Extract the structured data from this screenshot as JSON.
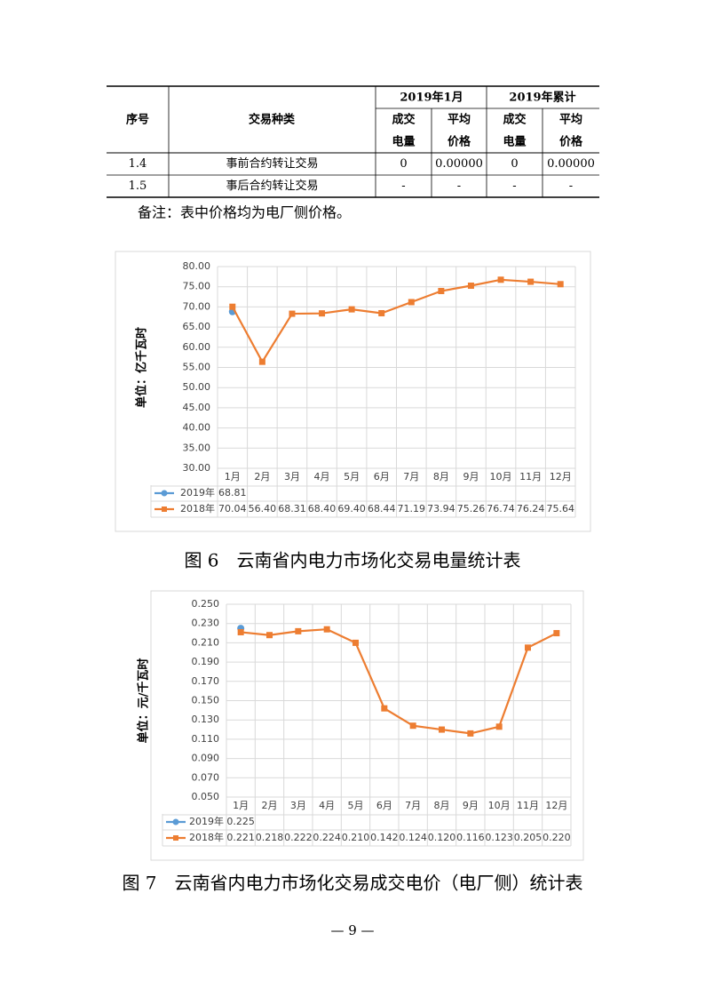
{
  "table": {
    "group_headers": [
      "序号",
      "交易种类",
      "2019年1月",
      "2019年累计"
    ],
    "subheaders": [
      [
        "成交",
        "电量"
      ],
      [
        "平均",
        "价格"
      ],
      [
        "成交",
        "电量"
      ],
      [
        "平均",
        "价格"
      ]
    ],
    "rows": [
      [
        "1.4",
        "事前合约转让交易",
        "0",
        "0.00000",
        "0",
        "0.00000"
      ],
      [
        "1.5",
        "事后合约转让交易",
        "-",
        "-",
        "-",
        "-"
      ]
    ]
  },
  "note": "备注：表中价格均为电厂侧价格。",
  "chart_data": [
    {
      "type": "line",
      "y_label": "单位：亿千瓦时",
      "caption": "图 6　云南省内电力市场化交易电量统计表",
      "categories": [
        "1月",
        "2月",
        "3月",
        "4月",
        "5月",
        "6月",
        "7月",
        "8月",
        "9月",
        "10月",
        "11月",
        "12月"
      ],
      "ylim": [
        30,
        80
      ],
      "yticks": [
        {
          "value": 30,
          "label": "30.00"
        },
        {
          "value": 35,
          "label": "35.00"
        },
        {
          "value": 40,
          "label": "40.00"
        },
        {
          "value": 45,
          "label": "45.00"
        },
        {
          "value": 50,
          "label": "50.00"
        },
        {
          "value": 55,
          "label": "55.00"
        },
        {
          "value": 60,
          "label": "60.00"
        },
        {
          "value": 65,
          "label": "65.00"
        },
        {
          "value": 70,
          "label": "70.00"
        },
        {
          "value": 75,
          "label": "75.00"
        },
        {
          "value": 80,
          "label": "80.00"
        }
      ],
      "series": [
        {
          "name": "2019年",
          "color": "#5b9bd5",
          "marker": "circle",
          "values": [
            68.81,
            null,
            null,
            null,
            null,
            null,
            null,
            null,
            null,
            null,
            null,
            null
          ],
          "value_labels": [
            "68.81",
            null,
            null,
            null,
            null,
            null,
            null,
            null,
            null,
            null,
            null,
            null
          ]
        },
        {
          "name": "2018年",
          "color": "#ed7d31",
          "marker": "square",
          "values": [
            70.04,
            56.4,
            68.31,
            68.4,
            69.4,
            68.44,
            71.19,
            73.94,
            75.26,
            76.74,
            76.24,
            75.64
          ],
          "value_labels": [
            "70.04",
            "56.40",
            "68.31",
            "68.40",
            "69.40",
            "68.44",
            "71.19",
            "73.94",
            "75.26",
            "76.74",
            "76.24",
            "75.64"
          ]
        }
      ]
    },
    {
      "type": "line",
      "y_label": "单位：元/千瓦时",
      "caption": "图 7　云南省内电力市场化交易成交电价（电厂侧）统计表",
      "categories": [
        "1月",
        "2月",
        "3月",
        "4月",
        "5月",
        "6月",
        "7月",
        "8月",
        "9月",
        "10月",
        "11月",
        "12月"
      ],
      "ylim": [
        0.05,
        0.25
      ],
      "yticks": [
        {
          "value": 0.05,
          "label": "0.050"
        },
        {
          "value": 0.07,
          "label": "0.070"
        },
        {
          "value": 0.09,
          "label": "0.090"
        },
        {
          "value": 0.11,
          "label": "0.110"
        },
        {
          "value": 0.13,
          "label": "0.130"
        },
        {
          "value": 0.15,
          "label": "0.150"
        },
        {
          "value": 0.17,
          "label": "0.170"
        },
        {
          "value": 0.19,
          "label": "0.190"
        },
        {
          "value": 0.21,
          "label": "0.210"
        },
        {
          "value": 0.23,
          "label": "0.230"
        },
        {
          "value": 0.25,
          "label": "0.250"
        }
      ],
      "series": [
        {
          "name": "2019年",
          "color": "#5b9bd5",
          "marker": "circle",
          "values": [
            0.225,
            null,
            null,
            null,
            null,
            null,
            null,
            null,
            null,
            null,
            null,
            null
          ],
          "value_labels": [
            "0.225",
            null,
            null,
            null,
            null,
            null,
            null,
            null,
            null,
            null,
            null,
            null
          ]
        },
        {
          "name": "2018年",
          "color": "#ed7d31",
          "marker": "square",
          "values": [
            0.221,
            0.218,
            0.222,
            0.224,
            0.21,
            0.142,
            0.124,
            0.12,
            0.116,
            0.123,
            0.205,
            0.22
          ],
          "value_labels": [
            "0.221",
            "0.218",
            "0.222",
            "0.224",
            "0.210",
            "0.142",
            "0.124",
            "0.120",
            "0.116",
            "0.123",
            "0.205",
            "0.220"
          ]
        }
      ]
    }
  ],
  "page_number": "— 9 —"
}
